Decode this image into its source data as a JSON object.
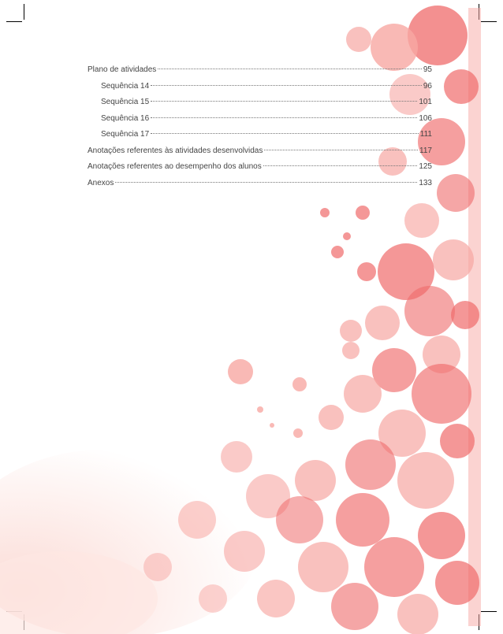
{
  "toc": [
    {
      "title": "Plano de atividades",
      "page": "95",
      "level": 0
    },
    {
      "title": "Sequência 14",
      "page": "96",
      "level": 1
    },
    {
      "title": "Sequência 15",
      "page": "101",
      "level": 1
    },
    {
      "title": "Sequência 16",
      "page": "106",
      "level": 1
    },
    {
      "title": "Sequência 17",
      "page": "111",
      "level": 1
    },
    {
      "title": "Anotações referentes às atividades desenvolvidas",
      "page": "117",
      "level": 0
    },
    {
      "title": "Anotações referentes ao desempenho dos alunos",
      "page": "125",
      "level": 0
    },
    {
      "title": "Anexos",
      "page": "133",
      "level": 0
    }
  ],
  "colors": {
    "splash_primary": "#ef6b6b",
    "splash_light": "#f7a7a3",
    "splash_pale": "#fbd8d2",
    "text": "#444444"
  }
}
